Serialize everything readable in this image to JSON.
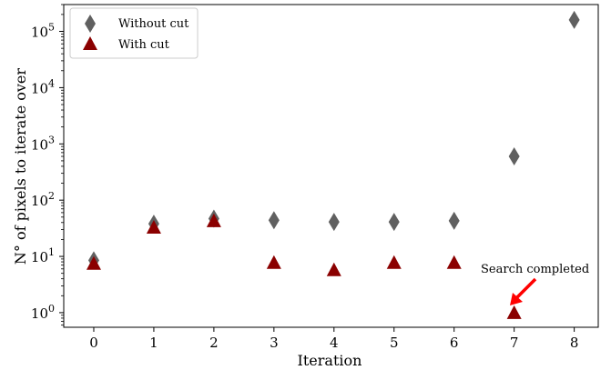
{
  "chart_data": {
    "type": "scatter",
    "xlabel": "Iteration",
    "ylabel": "N° of pixels to iterate over",
    "yscale": "log",
    "ylim": [
      0.55,
      300000
    ],
    "xlim": [
      -0.5,
      8.4
    ],
    "x_ticks": [
      "0",
      "1",
      "2",
      "3",
      "4",
      "5",
      "6",
      "7",
      "8"
    ],
    "y_ticks": [
      {
        "value": 1,
        "label": "10",
        "exp": "0"
      },
      {
        "value": 10,
        "label": "10",
        "exp": "1"
      },
      {
        "value": 100,
        "label": "10",
        "exp": "2"
      },
      {
        "value": 1000,
        "label": "10",
        "exp": "3"
      },
      {
        "value": 10000,
        "label": "10",
        "exp": "4"
      },
      {
        "value": 100000,
        "label": "10",
        "exp": "5"
      }
    ],
    "grid": false,
    "legend_position": "top-left",
    "series": [
      {
        "name": "Without cut",
        "marker": "diamond",
        "color": "#606060",
        "x": [
          0,
          1,
          2,
          3,
          4,
          5,
          6,
          7,
          8
        ],
        "y": [
          8.5,
          38,
          47,
          44,
          41,
          41,
          43,
          600,
          160000
        ]
      },
      {
        "name": "With cut",
        "marker": "triangle",
        "color": "#8b0000",
        "x": [
          0,
          1,
          2,
          3,
          4,
          5,
          6,
          7
        ],
        "y": [
          7.5,
          33,
          43,
          7.8,
          5.8,
          7.8,
          7.8,
          1
        ]
      }
    ],
    "annotations": [
      {
        "text": "Search completed",
        "x": 7,
        "y": 1,
        "arrow_color": "#ff0000"
      }
    ]
  }
}
